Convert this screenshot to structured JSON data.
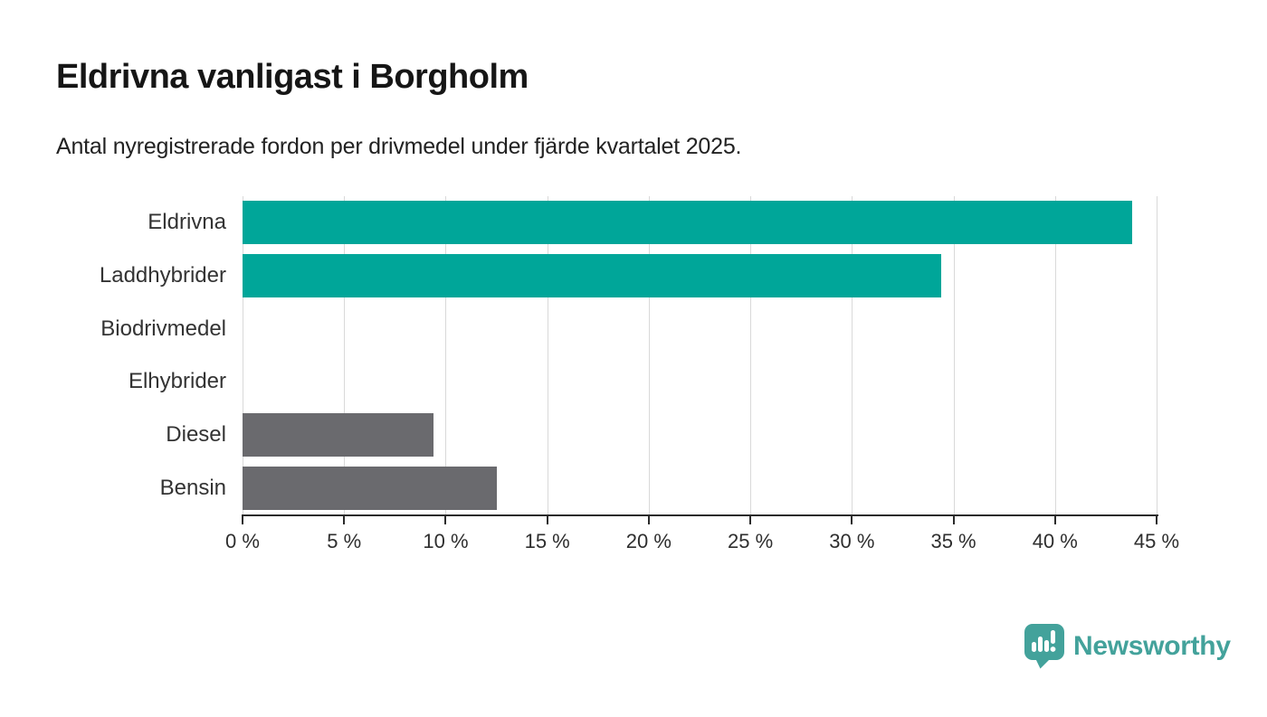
{
  "page": {
    "title": "Eldrivna vanligast i Borgholm",
    "subtitle": "Antal nyregistrerade fordon per drivmedel under fjärde kvartalet 2025."
  },
  "chart_data": {
    "type": "bar",
    "orientation": "horizontal",
    "title": "Eldrivna vanligast i Borgholm",
    "subtitle": "Antal nyregistrerade fordon per drivmedel under fjärde kvartalet 2025.",
    "categories": [
      "Eldrivna",
      "Laddhybrider",
      "Biodrivmedel",
      "Elhybrider",
      "Diesel",
      "Bensin"
    ],
    "values": [
      43.8,
      34.4,
      0,
      0,
      9.4,
      12.5
    ],
    "unit": "%",
    "xlim": [
      0,
      45
    ],
    "x_ticks": [
      0,
      5,
      10,
      15,
      20,
      25,
      30,
      35,
      40,
      45
    ],
    "x_tick_labels": [
      "0 %",
      "5 %",
      "10 %",
      "15 %",
      "20 %",
      "25 %",
      "30 %",
      "35 %",
      "40 %",
      "45 %"
    ],
    "grid": "vertical",
    "legend": "none",
    "bar_colors": [
      "#00a699",
      "#00a699",
      "#00a699",
      "#00a699",
      "#6a6a6e",
      "#6a6a6e"
    ],
    "accent_color": "#00a699",
    "neutral_color": "#6a6a6e",
    "gridline_color": "#d9d9d9",
    "axis_color": "#2b2b2b"
  },
  "branding": {
    "logo_text": "Newsworthy",
    "logo_color": "#43a29b",
    "logo_icon": "speech-bubble-bar-chart-icon"
  }
}
